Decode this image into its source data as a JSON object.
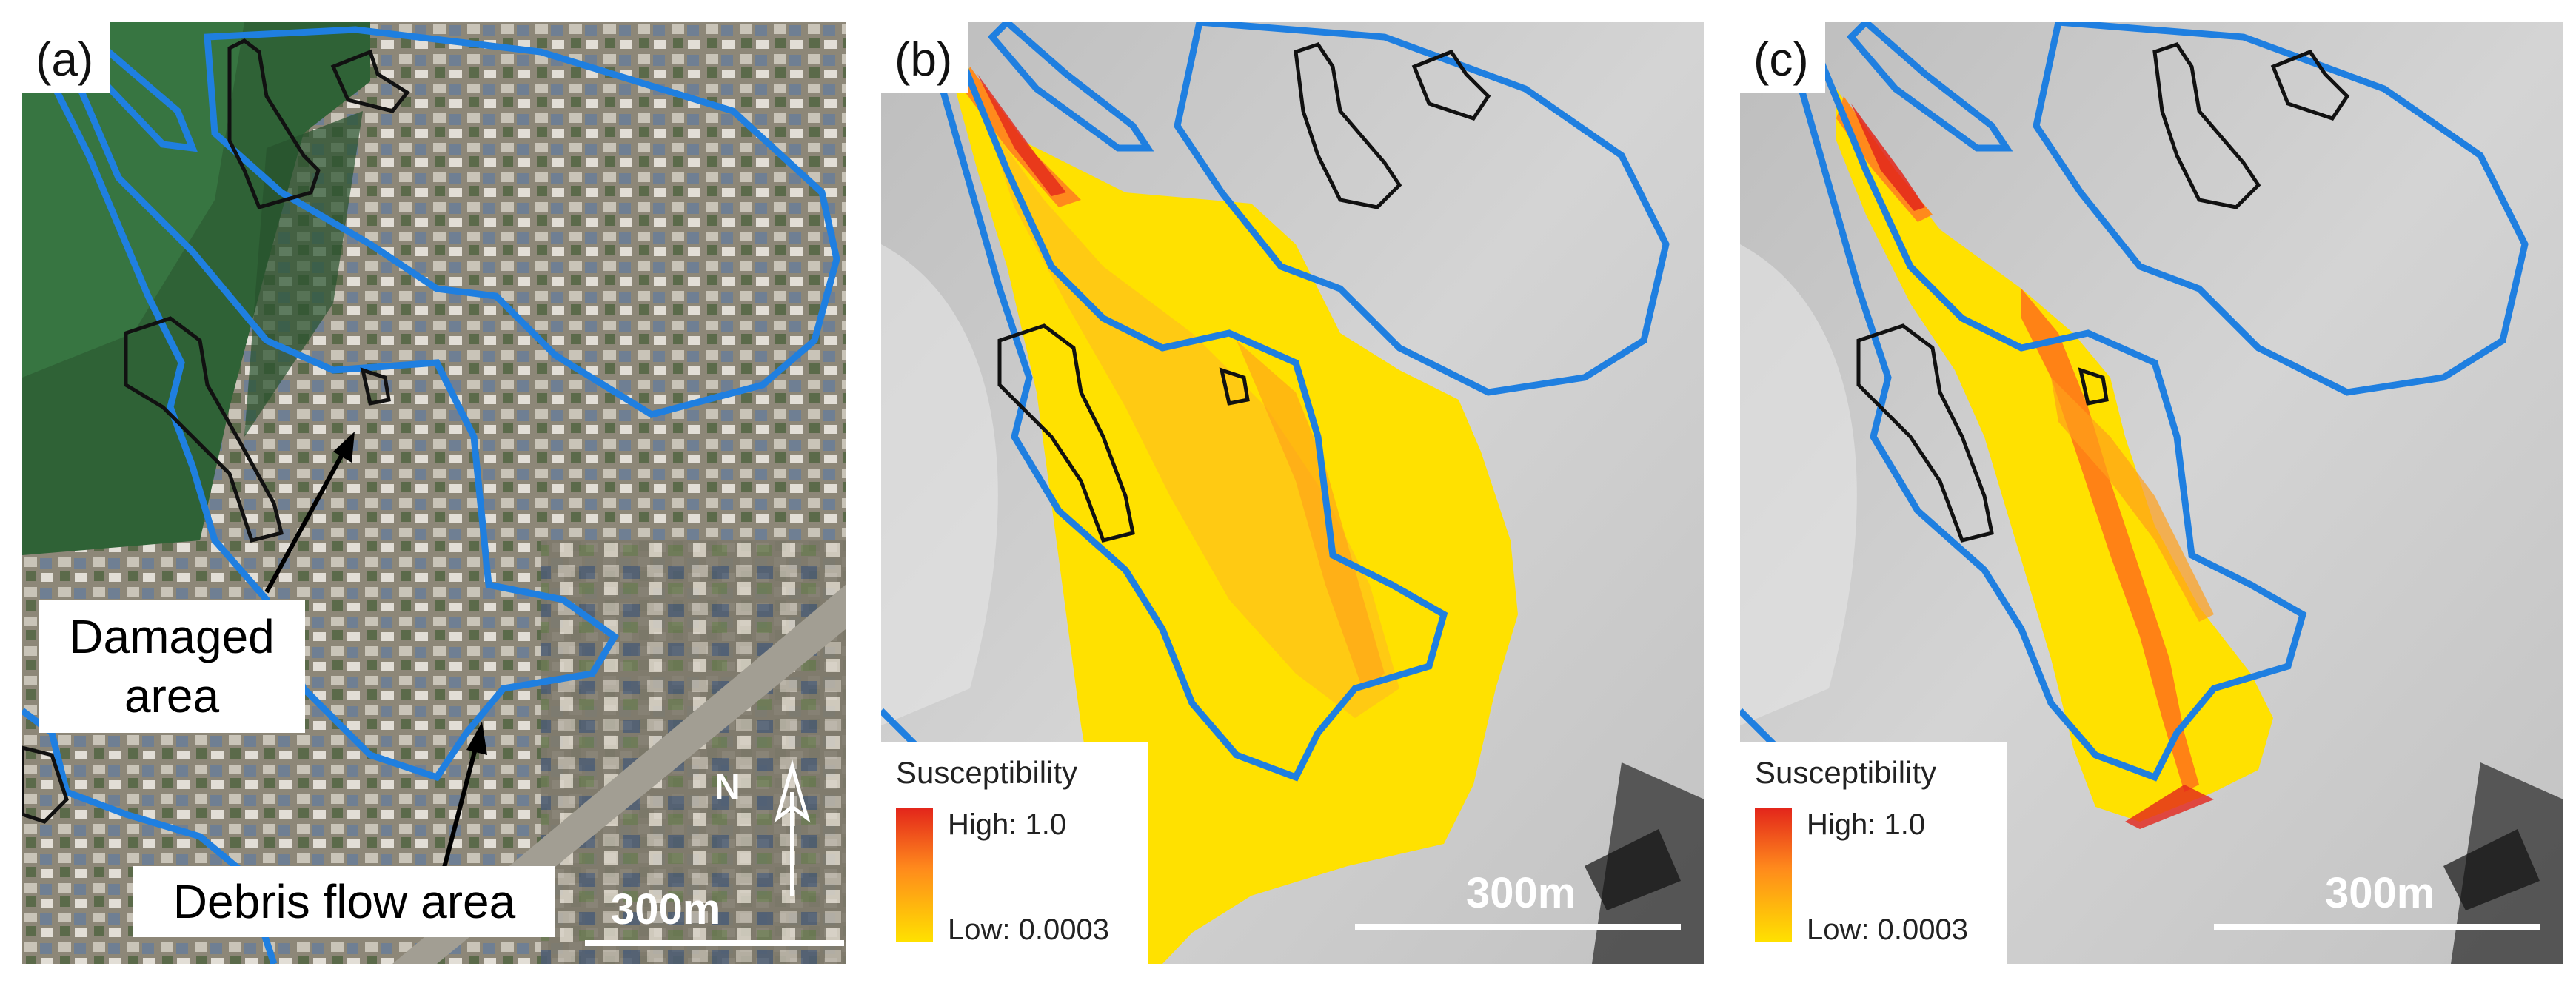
{
  "panels": {
    "a": {
      "label": "(a)"
    },
    "b": {
      "label": "(b)"
    },
    "c": {
      "label": "(c)"
    }
  },
  "callouts": {
    "damaged_area": "Damaged area",
    "debris_flow_area": "Debris flow area"
  },
  "scale_bar": {
    "text": "300m"
  },
  "north_arrow": {
    "label": "N"
  },
  "legend": {
    "title": "Susceptibility",
    "high": "High: 1.0",
    "low": "Low: 0.0003",
    "high_color": "#e3261b",
    "low_color": "#ffe100"
  },
  "colors": {
    "debris_flow_outline": "#1f7fe0",
    "damaged_outline": "#111111",
    "hillshade": "#c8c8c8"
  }
}
